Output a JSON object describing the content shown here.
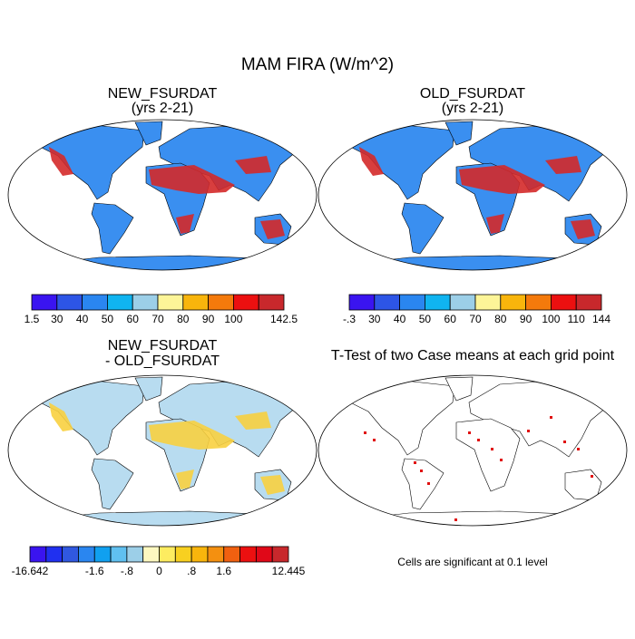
{
  "title": "MAM FIRA (W/m^2)",
  "panels": [
    {
      "title": "NEW_FSURDAT",
      "subtitle": "(yrs 2-21)",
      "colorbar": {
        "colors": [
          "#3a14f0",
          "#2d55e6",
          "#2a86f0",
          "#10b4f0",
          "#9ccfe8",
          "#fdf598",
          "#f8b50c",
          "#f47a0c",
          "#ec1010",
          "#c8282c"
        ],
        "labels": [
          "1.5",
          "30",
          "40",
          "50",
          "60",
          "70",
          "80",
          "90",
          "100",
          null,
          "142.5"
        ]
      }
    },
    {
      "title": "OLD_FSURDAT",
      "subtitle": "(yrs 2-21)",
      "colorbar": {
        "colors": [
          "#3a14f0",
          "#2d55e6",
          "#2a86f0",
          "#10b4f0",
          "#9ccfe8",
          "#fdf598",
          "#f8b50c",
          "#f47a0c",
          "#ec1010",
          "#c8282c"
        ],
        "labels": [
          "-.3",
          "30",
          "40",
          "50",
          "60",
          "70",
          "80",
          "90",
          "100",
          "110",
          "144"
        ]
      }
    },
    {
      "title": "NEW_FSURDAT",
      "subtitle": "- OLD_FSURDAT",
      "colorbar": {
        "colors": [
          "#3a14f0",
          "#2030f0",
          "#3058e0",
          "#2a86f0",
          "#10a0f0",
          "#60c0f0",
          "#9ccfe8",
          "#fdf8c0",
          "#fdec60",
          "#f8d020",
          "#f8b50c",
          "#f49010",
          "#f06010",
          "#ec1010",
          "#e00818",
          "#c8282c"
        ],
        "labels": [
          "-16.642",
          null,
          null,
          null,
          "-1.6",
          null,
          "-.8",
          null,
          "0",
          null,
          ".8",
          null,
          "1.6",
          null,
          null,
          null,
          "12.445"
        ]
      }
    },
    {
      "title": "T-Test of two Case means at each grid point",
      "note": "Cells are significant at 0.1 level"
    }
  ]
}
